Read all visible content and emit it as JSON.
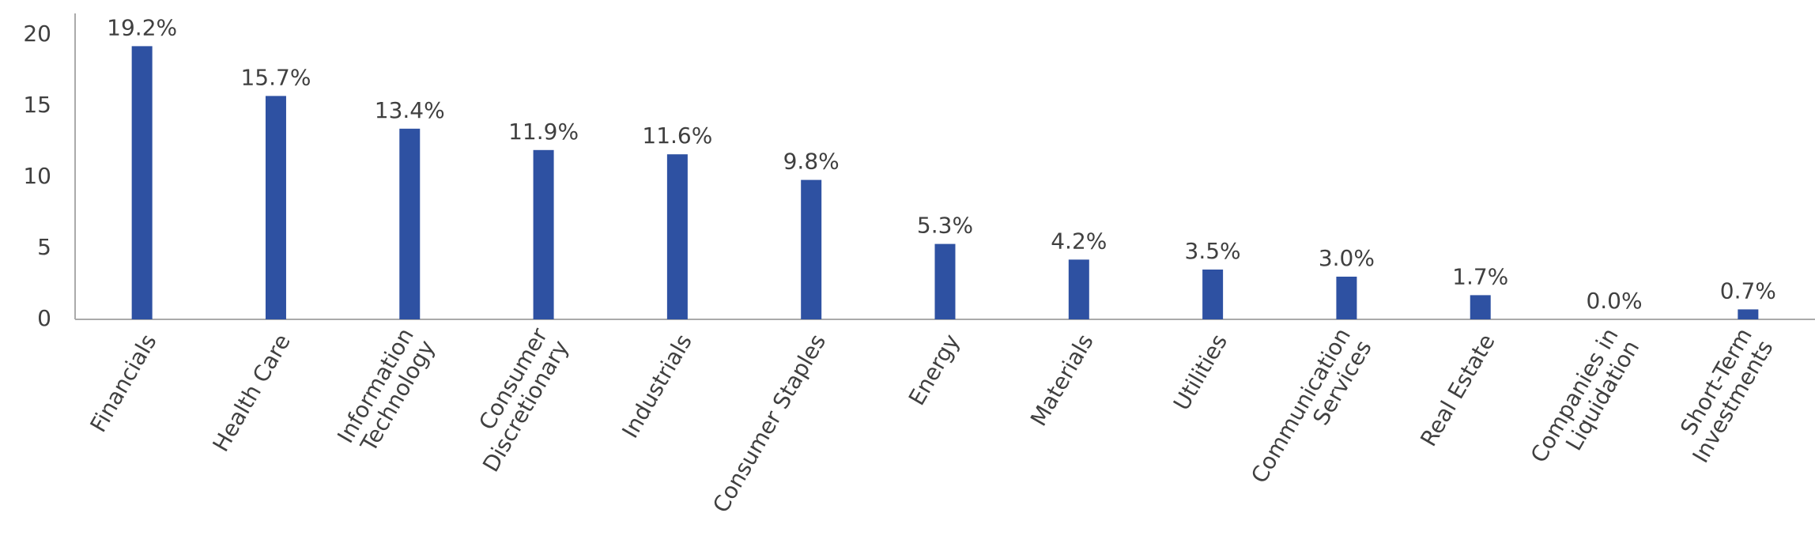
{
  "chart_data": {
    "type": "bar",
    "categories": [
      "Financials",
      "Health Care",
      "Information\nTechnology",
      "Consumer\nDiscretionary",
      "Industrials",
      "Consumer Staples",
      "Energy",
      "Materials",
      "Utilities",
      "Communication\nServices",
      "Real Estate",
      "Companies in\nLiquidation",
      "Short-Term\nInvestments"
    ],
    "values": [
      19.2,
      15.7,
      13.4,
      11.9,
      11.6,
      9.8,
      5.3,
      4.2,
      3.5,
      3.0,
      1.7,
      0.0,
      0.7
    ],
    "value_labels": [
      "19.2%",
      "15.7%",
      "13.4%",
      "11.9%",
      "11.6%",
      "9.8%",
      "5.3%",
      "4.2%",
      "3.5%",
      "3.0%",
      "1.7%",
      "0.0%",
      "0.7%"
    ],
    "color": "#2e51a2",
    "ylim": [
      0,
      21.5
    ],
    "yticks": [
      0,
      5,
      10,
      15,
      20
    ],
    "grid": false
  }
}
